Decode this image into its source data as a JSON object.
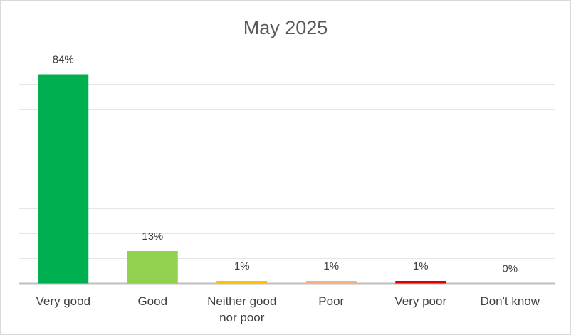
{
  "chart_data": {
    "type": "bar",
    "title": "May 2025",
    "categories": [
      "Very good",
      "Good",
      "Neither good nor poor",
      "Poor",
      "Very poor",
      "Don't know"
    ],
    "values": [
      84,
      13,
      1,
      1,
      1,
      0
    ],
    "value_labels": [
      "84%",
      "13%",
      "1%",
      "1%",
      "1%",
      "0%"
    ],
    "colors": [
      "#00b050",
      "#92d050",
      "#ffc000",
      "#f4b183",
      "#e00000",
      "#7f7f7f"
    ],
    "ylim": [
      0,
      90
    ],
    "yticks": [
      0,
      10,
      20,
      30,
      40,
      50,
      60,
      70,
      80
    ],
    "grid": true
  }
}
